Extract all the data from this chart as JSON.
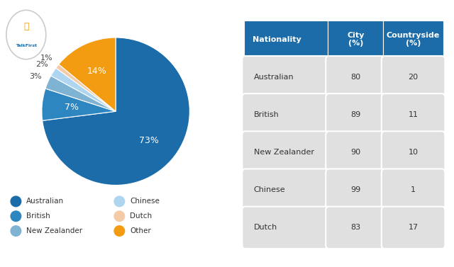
{
  "pie_labels": [
    "Australian",
    "British",
    "New Zealander",
    "Chinese",
    "Dutch",
    "Other"
  ],
  "pie_values": [
    73,
    7,
    3,
    2,
    1,
    14
  ],
  "pie_colors": [
    "#1b6ca8",
    "#2e86c1",
    "#7fb3d3",
    "#aed6f1",
    "#f5cba7",
    "#f39c12"
  ],
  "pie_pct_labels": [
    "73%",
    "7%",
    "3%",
    "2%",
    "1%",
    "14%"
  ],
  "legend_labels": [
    "Australian",
    "British",
    "New Zealander",
    "Chinese",
    "Dutch",
    "Other"
  ],
  "legend_colors": [
    "#1b6ca8",
    "#2e86c1",
    "#7fb3d3",
    "#aed6f1",
    "#f5cba7",
    "#f39c12"
  ],
  "table_header": [
    "Nationality",
    "City\n(%)",
    "Countryside\n(%)"
  ],
  "table_rows": [
    [
      "Australian",
      "80",
      "20"
    ],
    [
      "British",
      "89",
      "11"
    ],
    [
      "New Zealander",
      "90",
      "10"
    ],
    [
      "Chinese",
      "99",
      "1"
    ],
    [
      "Dutch",
      "83",
      "17"
    ]
  ],
  "header_bg": "#1b6ca8",
  "header_fg": "#ffffff",
  "row_bg": "#e0e0e0",
  "row_fg": "#333333",
  "bg_color": "#ffffff"
}
